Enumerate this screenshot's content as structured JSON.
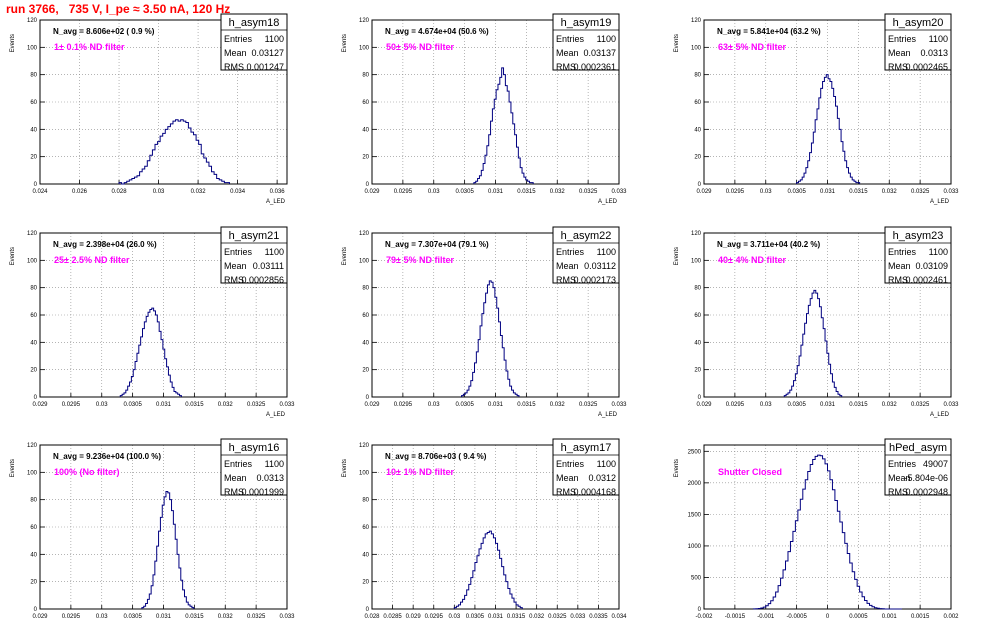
{
  "page_title": "run 3766,   735 V, I_pe ≈ 3.50 nA, 120 Hz",
  "colors": {
    "title": "#ff0000",
    "annotation": "#ff00ff",
    "histogram": "#000080",
    "axis": "#000000",
    "grid": "#888888"
  },
  "chart_data": [
    {
      "type": "histogram",
      "name": "h_asym18",
      "stats": {
        "entries": "1100",
        "mean": "0.03127",
        "rms": "0.001247"
      },
      "navg": "N_avg = 8.606e+02 ( 0.9 %)",
      "annotation": "1± 0.1% ND filter",
      "ylabel": "Events",
      "xlabel": "A_LED",
      "xlim": [
        0.024,
        0.0365
      ],
      "ylim": [
        0,
        120
      ],
      "xticks": [
        "0.024",
        "0.026",
        "0.028",
        "0.03",
        "0.032",
        "0.034",
        "0.036"
      ],
      "yticks": [
        "0",
        "20",
        "40",
        "60",
        "80",
        "100",
        "120"
      ],
      "bins": {
        "x0": 0.028,
        "w": 0.00013,
        "values": [
          1,
          0,
          1,
          2,
          3,
          4,
          5,
          6,
          9,
          11,
          13,
          17,
          21,
          25,
          29,
          31,
          35,
          37,
          40,
          42,
          44,
          46,
          47,
          46,
          47,
          46,
          45,
          41,
          38,
          36,
          32,
          29,
          22,
          19,
          16,
          13,
          9,
          7,
          4,
          3,
          2,
          1,
          1
        ]
      }
    },
    {
      "type": "histogram",
      "name": "h_asym19",
      "stats": {
        "entries": "1100",
        "mean": "0.03137",
        "rms": "0.0002361"
      },
      "navg": "N_avg = 4.674e+04 (50.6 %)",
      "annotation": "50± 5% ND filter",
      "ylabel": "Events",
      "xlabel": "A_LED",
      "xlim": [
        0.029,
        0.033
      ],
      "ylim": [
        0,
        120
      ],
      "xticks": [
        "0.029",
        "0.0295",
        "0.03",
        "0.0305",
        "0.031",
        "0.0315",
        "0.032",
        "0.0325",
        "0.033"
      ],
      "yticks": [
        "0",
        "20",
        "40",
        "60",
        "80",
        "100",
        "120"
      ],
      "bins": {
        "x0": 0.03065,
        "w": 3e-05,
        "values": [
          1,
          2,
          4,
          6,
          10,
          15,
          21,
          28,
          36,
          46,
          55,
          62,
          69,
          73,
          78,
          85,
          80,
          72,
          68,
          60,
          52,
          44,
          36,
          27,
          19,
          12,
          8,
          5,
          3,
          2,
          1,
          1
        ]
      }
    },
    {
      "type": "histogram",
      "name": "h_asym20",
      "stats": {
        "entries": "1100",
        "mean": "0.0313",
        "rms": "0.0002465"
      },
      "navg": "N_avg = 5.841e+04 (63.2 %)",
      "annotation": "63± 5% ND filter",
      "ylabel": "Events",
      "xlabel": "A_LED",
      "xlim": [
        0.029,
        0.033
      ],
      "ylim": [
        0,
        120
      ],
      "xticks": [
        "0.029",
        "0.0295",
        "0.03",
        "0.0305",
        "0.031",
        "0.0315",
        "0.032",
        "0.0325",
        "0.033"
      ],
      "yticks": [
        "0",
        "20",
        "40",
        "60",
        "80",
        "100",
        "120"
      ],
      "bins": {
        "x0": 0.0305,
        "w": 3e-05,
        "values": [
          1,
          2,
          3,
          5,
          8,
          12,
          17,
          23,
          30,
          38,
          47,
          55,
          63,
          70,
          75,
          78,
          80,
          77,
          75,
          70,
          64,
          57,
          48,
          40,
          31,
          24,
          17,
          12,
          8,
          5,
          3,
          2,
          1,
          1
        ]
      }
    },
    {
      "type": "histogram",
      "name": "h_asym21",
      "stats": {
        "entries": "1100",
        "mean": "0.03111",
        "rms": "0.0002856"
      },
      "navg": "N_avg = 2.398e+04 (26.0 %)",
      "annotation": "25± 2.5% ND filter",
      "ylabel": "Events",
      "xlabel": "A_LED",
      "xlim": [
        0.029,
        0.033
      ],
      "ylim": [
        0,
        120
      ],
      "xticks": [
        "0.029",
        "0.0295",
        "0.03",
        "0.0305",
        "0.031",
        "0.0315",
        "0.032",
        "0.0325",
        "0.033"
      ],
      "yticks": [
        "0",
        "20",
        "40",
        "60",
        "80",
        "100",
        "120"
      ],
      "bins": {
        "x0": 0.0303,
        "w": 3e-05,
        "values": [
          1,
          2,
          3,
          5,
          8,
          11,
          15,
          20,
          26,
          32,
          38,
          44,
          50,
          55,
          59,
          62,
          64,
          65,
          63,
          60,
          55,
          48,
          42,
          35,
          28,
          22,
          16,
          11,
          7,
          4,
          3,
          2,
          1
        ]
      }
    },
    {
      "type": "histogram",
      "name": "h_asym22",
      "stats": {
        "entries": "1100",
        "mean": "0.03112",
        "rms": "0.0002173"
      },
      "navg": "N_avg = 7.307e+04 (79.1 %)",
      "annotation": "79± 5% ND filter",
      "ylabel": "Events",
      "xlabel": "A_LED",
      "xlim": [
        0.029,
        0.033
      ],
      "ylim": [
        0,
        120
      ],
      "xticks": [
        "0.029",
        "0.0295",
        "0.03",
        "0.0305",
        "0.031",
        "0.0315",
        "0.032",
        "0.0325",
        "0.033"
      ],
      "yticks": [
        "0",
        "20",
        "40",
        "60",
        "80",
        "100",
        "120"
      ],
      "bins": {
        "x0": 0.03045,
        "w": 3e-05,
        "values": [
          1,
          2,
          3,
          5,
          8,
          12,
          18,
          25,
          33,
          42,
          52,
          61,
          69,
          76,
          82,
          85,
          84,
          80,
          73,
          65,
          55,
          45,
          36,
          27,
          19,
          13,
          8,
          5,
          3,
          2,
          1
        ]
      }
    },
    {
      "type": "histogram",
      "name": "h_asym23",
      "stats": {
        "entries": "1100",
        "mean": "0.03109",
        "rms": "0.0002461"
      },
      "navg": "N_avg = 3.711e+04 (40.2 %)",
      "annotation": "40± 4% ND filter",
      "ylabel": "Events",
      "xlabel": "A_LED",
      "xlim": [
        0.029,
        0.033
      ],
      "ylim": [
        0,
        120
      ],
      "xticks": [
        "0.029",
        "0.0295",
        "0.03",
        "0.0305",
        "0.031",
        "0.0315",
        "0.032",
        "0.0325",
        "0.033"
      ],
      "yticks": [
        "0",
        "20",
        "40",
        "60",
        "80",
        "100",
        "120"
      ],
      "bins": {
        "x0": 0.0303,
        "w": 3e-05,
        "values": [
          1,
          2,
          3,
          5,
          8,
          12,
          17,
          23,
          30,
          38,
          46,
          54,
          61,
          67,
          72,
          76,
          78,
          76,
          72,
          66,
          58,
          50,
          41,
          32,
          24,
          17,
          11,
          7,
          4,
          2,
          1
        ]
      }
    },
    {
      "type": "histogram",
      "name": "h_asym16",
      "stats": {
        "entries": "1100",
        "mean": "0.0313",
        "rms": "0.0001999"
      },
      "navg": "N_avg = 9.236e+04 (100.0 %)",
      "annotation": "100% (No filter)",
      "ylabel": "Events",
      "xlabel": "A_LED",
      "xlim": [
        0.029,
        0.033
      ],
      "ylim": [
        0,
        120
      ],
      "xticks": [
        "0.029",
        "0.0295",
        "0.03",
        "0.0305",
        "0.031",
        "0.0315",
        "0.032",
        "0.0325",
        "0.033"
      ],
      "yticks": [
        "0",
        "20",
        "40",
        "60",
        "80",
        "100",
        "120"
      ],
      "bins": {
        "x0": 0.03065,
        "w": 3e-05,
        "values": [
          1,
          2,
          4,
          7,
          11,
          17,
          25,
          35,
          46,
          57,
          67,
          76,
          82,
          86,
          85,
          80,
          72,
          62,
          51,
          40,
          30,
          21,
          14,
          9,
          5,
          3,
          2,
          1
        ]
      }
    },
    {
      "type": "histogram",
      "name": "h_asym17",
      "stats": {
        "entries": "1100",
        "mean": "0.0312",
        "rms": "0.0004168"
      },
      "navg": "N_avg = 8.706e+03 ( 9.4 %)",
      "annotation": "10± 1% ND filter",
      "ylabel": "Events",
      "xlabel": "A_LED",
      "xlim": [
        0.028,
        0.034
      ],
      "ylim": [
        0,
        120
      ],
      "xticks": [
        "0.028",
        "0.0285",
        "0.029",
        "0.0295",
        "0.03",
        "0.0305",
        "0.031",
        "0.0315",
        "0.032",
        "0.0325",
        "0.033",
        "0.0335",
        "0.034"
      ],
      "yticks": [
        "0",
        "20",
        "40",
        "60",
        "80",
        "100",
        "120"
      ],
      "bins": {
        "x0": 0.03,
        "w": 5e-05,
        "values": [
          1,
          2,
          3,
          5,
          7,
          10,
          14,
          18,
          23,
          28,
          34,
          39,
          44,
          48,
          52,
          55,
          56,
          57,
          55,
          52,
          48,
          43,
          37,
          31,
          25,
          20,
          15,
          11,
          8,
          5,
          3,
          2,
          1
        ]
      }
    },
    {
      "type": "histogram",
      "name": "hPed_asym",
      "stats": {
        "entries": "49007",
        "mean": "-5.804e-06",
        "rms": "0.0002948"
      },
      "navg": "",
      "annotation": "Shutter Closed",
      "ylabel": "Events",
      "xlabel": "",
      "xlim": [
        -0.002,
        0.002
      ],
      "ylim": [
        0,
        2600
      ],
      "xticks": [
        "-0.002",
        "-0.0015",
        "-0.001",
        "-0.0005",
        "0",
        "0.0005",
        "0.001",
        "0.0015",
        "0.002"
      ],
      "yticks": [
        "0",
        "500",
        "1000",
        "1500",
        "2000",
        "2500"
      ],
      "bins": {
        "x0": -0.0012,
        "w": 4e-05,
        "values": [
          2,
          4,
          8,
          16,
          30,
          52,
          85,
          130,
          190,
          270,
          370,
          490,
          620,
          760,
          910,
          1070,
          1230,
          1400,
          1570,
          1740,
          1900,
          2050,
          2180,
          2290,
          2370,
          2420,
          2440,
          2430,
          2380,
          2300,
          2190,
          2050,
          1890,
          1720,
          1550,
          1380,
          1210,
          1040,
          880,
          730,
          590,
          470,
          360,
          270,
          195,
          135,
          90,
          58,
          35,
          20,
          11,
          6,
          3,
          1,
          1,
          1,
          1,
          1,
          1,
          1
        ]
      }
    }
  ]
}
